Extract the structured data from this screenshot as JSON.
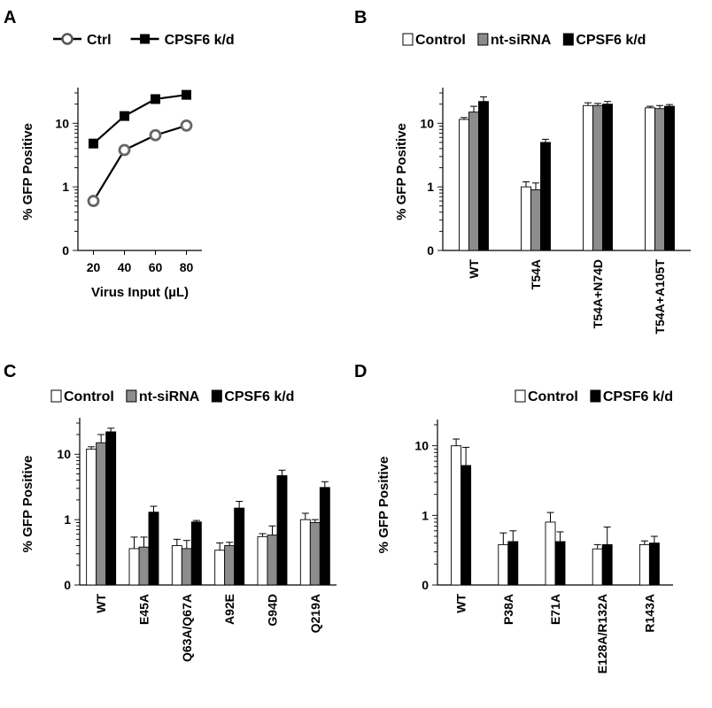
{
  "chart_data": [
    {
      "panel": "A",
      "type": "line",
      "xlabel": "Virus Input (µL)",
      "ylabel": "% GFP Positive",
      "yscale": "log",
      "ylim": [
        0.1,
        30
      ],
      "y_ticks": [
        {
          "v": 0.1,
          "label": "0"
        },
        {
          "v": 1,
          "label": "1"
        },
        {
          "v": 10,
          "label": "10"
        }
      ],
      "x": [
        20,
        40,
        60,
        80
      ],
      "xlim": [
        10,
        90
      ],
      "series": [
        {
          "name": "Ctrl",
          "marker": "open-circle",
          "values": [
            0.6,
            3.8,
            6.5,
            9.2
          ]
        },
        {
          "name": "CPSF6 k/d",
          "marker": "filled-square",
          "values": [
            4.8,
            13,
            24,
            28
          ]
        }
      ],
      "legend_position": "top"
    },
    {
      "panel": "B",
      "type": "bar",
      "ylabel": "% GFP Positive",
      "yscale": "log",
      "ylim": [
        0.1,
        30
      ],
      "y_ticks": [
        {
          "v": 0.1,
          "label": "0"
        },
        {
          "v": 1,
          "label": "1"
        },
        {
          "v": 10,
          "label": "10"
        }
      ],
      "categories": [
        "WT",
        "T54A",
        "T54A+N74D",
        "T54A+A105T"
      ],
      "series": [
        {
          "name": "Control",
          "color": "#ffffff",
          "values": [
            11.5,
            1.0,
            19,
            17.5
          ],
          "errors": [
            0.8,
            0.2,
            2,
            1
          ]
        },
        {
          "name": "nt-siRNA",
          "color": "#8c8c8c",
          "values": [
            15,
            0.9,
            19,
            17
          ],
          "errors": [
            3.5,
            0.25,
            1.5,
            2
          ]
        },
        {
          "name": "CPSF6 k/d",
          "color": "#000000",
          "values": [
            22,
            5,
            20,
            18.5
          ],
          "errors": [
            4,
            0.6,
            2,
            1.2
          ]
        }
      ],
      "legend_position": "top"
    },
    {
      "panel": "C",
      "type": "bar",
      "ylabel": "% GFP Positive",
      "yscale": "log",
      "ylim": [
        0.1,
        30
      ],
      "y_ticks": [
        {
          "v": 0.1,
          "label": "0"
        },
        {
          "v": 1,
          "label": "1"
        },
        {
          "v": 10,
          "label": "10"
        }
      ],
      "categories": [
        "WT",
        "E45A",
        "Q63A/Q67A",
        "A92E",
        "G94D",
        "Q219A"
      ],
      "series": [
        {
          "name": "Control",
          "color": "#ffffff",
          "values": [
            12,
            0.36,
            0.4,
            0.34,
            0.55,
            1.0
          ],
          "errors": [
            1,
            0.18,
            0.1,
            0.1,
            0.06,
            0.25
          ]
        },
        {
          "name": "nt-siRNA",
          "color": "#8c8c8c",
          "values": [
            15,
            0.38,
            0.36,
            0.4,
            0.58,
            0.9
          ],
          "errors": [
            5,
            0.16,
            0.12,
            0.05,
            0.22,
            0.1
          ]
        },
        {
          "name": "CPSF6 k/d",
          "color": "#000000",
          "values": [
            22,
            1.3,
            0.92,
            1.5,
            4.7,
            3.1
          ],
          "errors": [
            3,
            0.3,
            0.05,
            0.4,
            1,
            0.7
          ]
        }
      ],
      "legend_position": "top"
    },
    {
      "panel": "D",
      "type": "bar",
      "ylabel": "% GFP Positive",
      "yscale": "log",
      "ylim": [
        0.1,
        20
      ],
      "y_ticks": [
        {
          "v": 0.1,
          "label": "0"
        },
        {
          "v": 1,
          "label": "1"
        },
        {
          "v": 10,
          "label": "10"
        }
      ],
      "categories": [
        "WT",
        "P38A",
        "E71A",
        "E128A/R132A",
        "R143A"
      ],
      "series": [
        {
          "name": "Control",
          "color": "#ffffff",
          "values": [
            10,
            0.38,
            0.8,
            0.33,
            0.38
          ],
          "errors": [
            2.5,
            0.18,
            0.3,
            0.05,
            0.05
          ]
        },
        {
          "name": "CPSF6 k/d",
          "color": "#000000",
          "values": [
            5.2,
            0.42,
            0.42,
            0.38,
            0.4
          ],
          "errors": [
            4.3,
            0.18,
            0.16,
            0.3,
            0.1
          ]
        }
      ],
      "legend_position": "top"
    }
  ]
}
